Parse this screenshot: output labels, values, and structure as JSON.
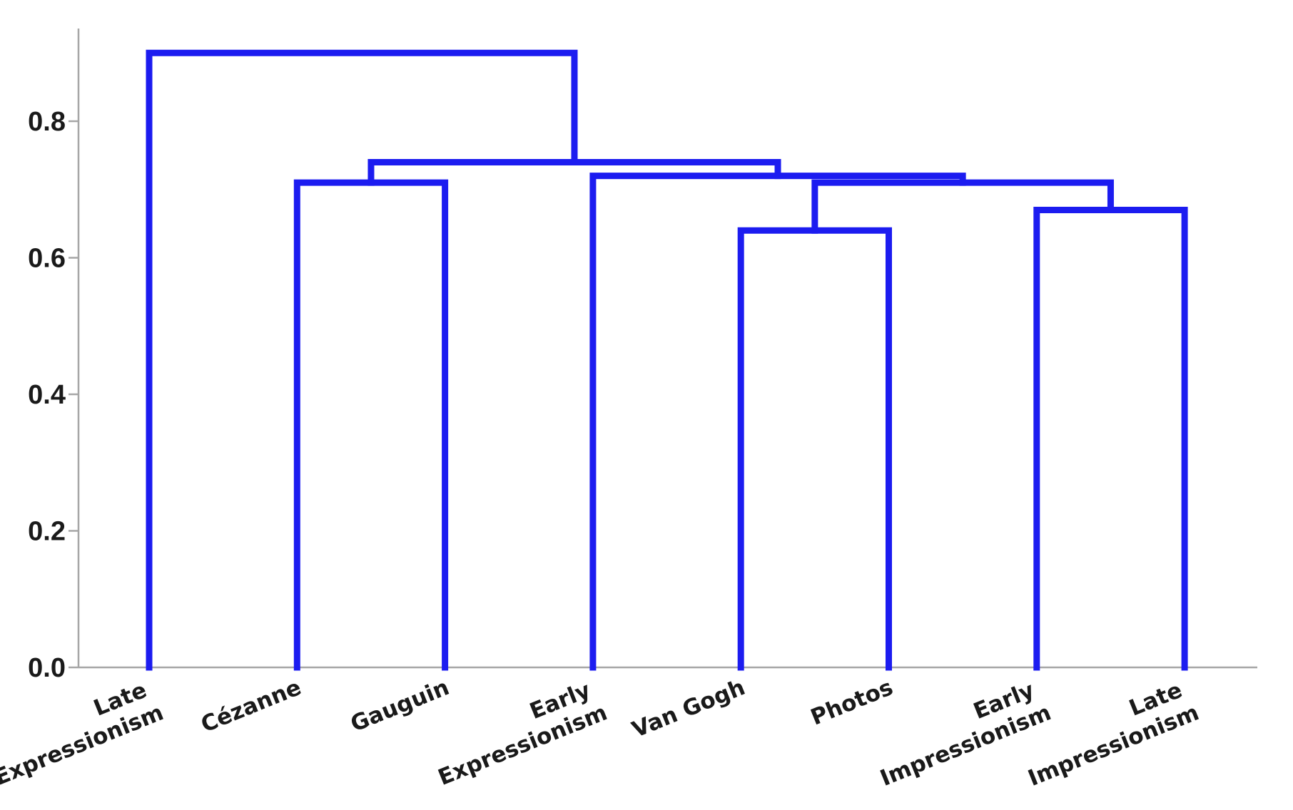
{
  "chart_data": {
    "type": "dendrogram",
    "title": "",
    "xlabel": "",
    "ylabel": "",
    "ylim": [
      0,
      0.9
    ],
    "y_ticks": [
      "0.0",
      "0.2",
      "0.4",
      "0.6",
      "0.8"
    ],
    "line_color": "#1c1cf0",
    "grid": false,
    "leaves": [
      {
        "label": [
          "Late",
          "Expressionism"
        ]
      },
      {
        "label": [
          "Cézanne"
        ]
      },
      {
        "label": [
          "Gauguin"
        ]
      },
      {
        "label": [
          "Early",
          "Expressionism"
        ]
      },
      {
        "label": [
          "Van Gogh"
        ]
      },
      {
        "label": [
          "Photos"
        ]
      },
      {
        "label": [
          "Early",
          "Impressionism"
        ]
      },
      {
        "label": [
          "Late",
          "Impressionism"
        ]
      }
    ],
    "merges": [
      {
        "id": "m_vangogh_photos",
        "left": "leaf:4",
        "right": "leaf:5",
        "height": 0.64
      },
      {
        "id": "m_impressionism",
        "left": "leaf:6",
        "right": "leaf:7",
        "height": 0.67
      },
      {
        "id": "m_cezanne_gauguin",
        "left": "leaf:1",
        "right": "leaf:2",
        "height": 0.71
      },
      {
        "id": "m_vg_ph_imp",
        "left": "m_vangogh_photos",
        "right": "m_impressionism",
        "height": 0.71
      },
      {
        "id": "m_earlyexp_group",
        "left": "leaf:3",
        "right": "m_vg_ph_imp",
        "height": 0.72
      },
      {
        "id": "m_ce_ga_group",
        "left": "m_cezanne_gauguin",
        "right": "m_earlyexp_group",
        "height": 0.74
      },
      {
        "id": "m_root",
        "left": "leaf:0",
        "right": "m_ce_ga_group",
        "height": 0.9
      }
    ]
  }
}
